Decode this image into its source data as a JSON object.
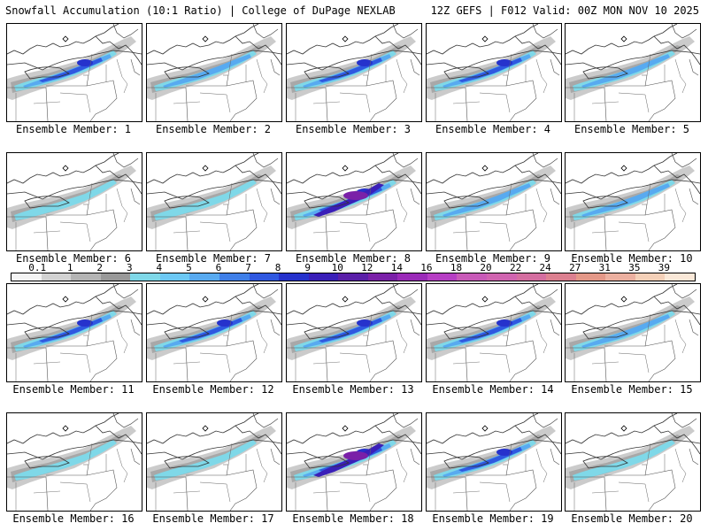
{
  "header": {
    "title": "Snowfall Accumulation (10:1 Ratio) | College of DuPage NEXLAB",
    "run_info": "12Z GEFS | F012 Valid: 00Z MON NOV 10 2025"
  },
  "colorbar": {
    "labels": [
      "0.1",
      "1",
      "2",
      "3",
      "4",
      "5",
      "6",
      "7",
      "8",
      "9",
      "10",
      "12",
      "14",
      "16",
      "18",
      "20",
      "22",
      "24",
      "27",
      "31",
      "35",
      "39"
    ],
    "colors": [
      "#f4f4f4",
      "#d2d2d2",
      "#b4b4b4",
      "#999999",
      "#7fd8e8",
      "#6cc8f4",
      "#58aaf0",
      "#3f7fe8",
      "#2f58e0",
      "#2632cc",
      "#3a1fb8",
      "#5a1fa8",
      "#7a20a8",
      "#9a2ab8",
      "#b63ec4",
      "#c85ab8",
      "#d064b0",
      "#d46ea0",
      "#dc8090",
      "#e49888",
      "#ecb0a0",
      "#f4d0b8",
      "#fae8d8"
    ]
  },
  "panels": [
    {
      "label": "Ensemble Member: 1",
      "intensity": 3
    },
    {
      "label": "Ensemble Member: 2",
      "intensity": 2
    },
    {
      "label": "Ensemble Member: 3",
      "intensity": 3
    },
    {
      "label": "Ensemble Member: 4",
      "intensity": 3
    },
    {
      "label": "Ensemble Member: 5",
      "intensity": 2
    },
    {
      "label": "Ensemble Member: 6",
      "intensity": 1
    },
    {
      "label": "Ensemble Member: 7",
      "intensity": 1
    },
    {
      "label": "Ensemble Member: 8",
      "intensity": 4
    },
    {
      "label": "Ensemble Member: 9",
      "intensity": 2
    },
    {
      "label": "Ensemble Member: 10",
      "intensity": 2
    },
    {
      "label": "Ensemble Member: 11",
      "intensity": 3
    },
    {
      "label": "Ensemble Member: 12",
      "intensity": 3
    },
    {
      "label": "Ensemble Member: 13",
      "intensity": 3
    },
    {
      "label": "Ensemble Member: 14",
      "intensity": 3
    },
    {
      "label": "Ensemble Member: 15",
      "intensity": 2
    },
    {
      "label": "Ensemble Member: 16",
      "intensity": 1
    },
    {
      "label": "Ensemble Member: 17",
      "intensity": 1
    },
    {
      "label": "Ensemble Member: 18",
      "intensity": 4
    },
    {
      "label": "Ensemble Member: 19",
      "intensity": 3
    },
    {
      "label": "Ensemble Member: 20",
      "intensity": 1
    }
  ]
}
